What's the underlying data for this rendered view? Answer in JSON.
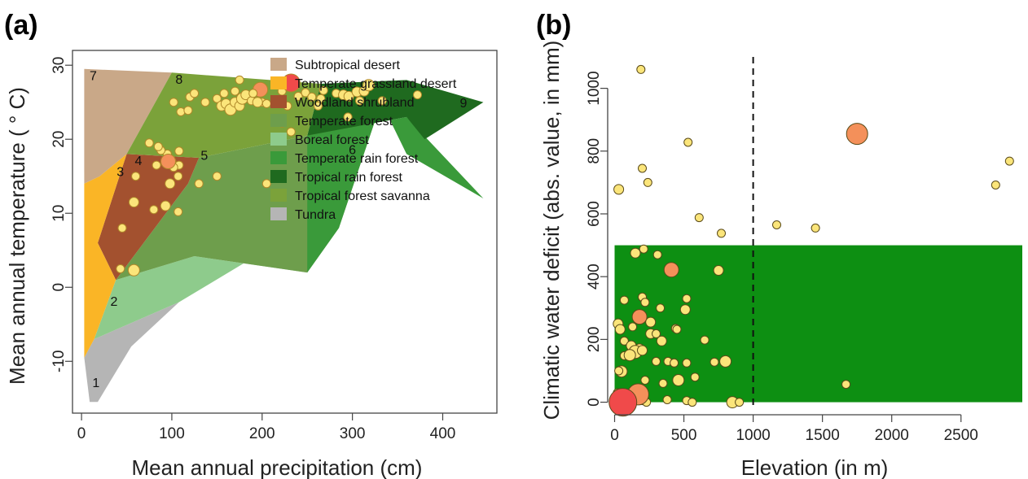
{
  "chart_data": [
    {
      "panel": "(a)",
      "type": "scatter",
      "xlabel": "Mean annual precipitation (cm)",
      "ylabel": "Mean annual temperature ( ° C)",
      "xlim": [
        -10,
        460
      ],
      "ylim": [
        32,
        -17
      ],
      "y_axis_inverted": true,
      "xticks": [
        0,
        100,
        200,
        300,
        400
      ],
      "yticks": [
        30,
        20,
        10,
        0,
        -10
      ],
      "legend": {
        "placement": "top-right",
        "entries": [
          {
            "label": "Subtropical desert",
            "color": "#c9a888"
          },
          {
            "label": "Temperate grassland desert",
            "color": "#fab526"
          },
          {
            "label": "Woodland shrubland",
            "color": "#a3512f"
          },
          {
            "label": "Temperate forest",
            "color": "#6e9e4c"
          },
          {
            "label": "Boreal forest",
            "color": "#8ecb8c"
          },
          {
            "label": "Temperate rain forest",
            "color": "#3a9a3a"
          },
          {
            "label": "Tropical rain forest",
            "color": "#1f6a1f"
          },
          {
            "label": "Tropical forest savanna",
            "color": "#7ba23a"
          },
          {
            "label": "Tundra",
            "color": "#b5b5b5"
          }
        ]
      },
      "biome_regions": [
        {
          "biome": "Tundra",
          "color": "#b5b5b5",
          "polygon": [
            [
              3,
              -9.5
            ],
            [
              9,
              -15.5
            ],
            [
              18,
              -15.5
            ],
            [
              55,
              -8
            ],
            [
              108,
              -2
            ],
            [
              14,
              -7
            ]
          ]
        },
        {
          "biome": "Boreal forest",
          "color": "#8ecb8c",
          "polygon": [
            [
              14,
              -7
            ],
            [
              108,
              -2
            ],
            [
              190,
              4
            ],
            [
              250,
              2
            ],
            [
              125,
              4.2
            ],
            [
              38,
              1
            ]
          ]
        },
        {
          "biome": "Temperate forest",
          "color": "#6e9e4c",
          "polygon": [
            [
              38,
              1
            ],
            [
              125,
              4.2
            ],
            [
              250,
              2
            ],
            [
              285,
              8
            ],
            [
              332,
              25
            ],
            [
              250,
              20.5
            ],
            [
              130,
              17.5
            ],
            [
              118,
              14
            ]
          ]
        },
        {
          "biome": "Temperate rain forest",
          "color": "#3a9a3a",
          "polygon": [
            [
              250,
              2
            ],
            [
              285,
              8
            ],
            [
              332,
              25
            ],
            [
              360,
              18
            ],
            [
              445,
              12
            ],
            [
              360,
              23
            ],
            [
              250,
              20.5
            ]
          ]
        },
        {
          "biome": "Tropical rain forest",
          "color": "#1f6a1f",
          "polygon": [
            [
              250,
              20.5
            ],
            [
              360,
              23
            ],
            [
              380,
              20
            ],
            [
              445,
              25
            ],
            [
              360,
              28
            ],
            [
              265,
              27.5
            ]
          ]
        },
        {
          "biome": "Woodland shrubland",
          "color": "#a3512f",
          "polygon": [
            [
              38,
              1
            ],
            [
              118,
              14
            ],
            [
              130,
              17.5
            ],
            [
              50,
              18
            ],
            [
              18,
              6
            ]
          ]
        },
        {
          "biome": "Temperate grassland desert",
          "color": "#fab526",
          "polygon": [
            [
              3,
              -9.5
            ],
            [
              14,
              -7
            ],
            [
              38,
              1
            ],
            [
              18,
              6
            ],
            [
              50,
              18
            ],
            [
              20,
              15
            ],
            [
              3,
              14
            ]
          ]
        },
        {
          "biome": "Subtropical desert",
          "color": "#c9a888",
          "polygon": [
            [
              3,
              14
            ],
            [
              20,
              15
            ],
            [
              50,
              18
            ],
            [
              100,
              29
            ],
            [
              3,
              29.5
            ]
          ]
        },
        {
          "biome": "Tropical forest savanna",
          "color": "#7ba23a",
          "polygon": [
            [
              50,
              18
            ],
            [
              130,
              17.5
            ],
            [
              250,
              20.5
            ],
            [
              265,
              27.5
            ],
            [
              100,
              29
            ]
          ]
        }
      ],
      "region_labels": [
        {
          "text": "1",
          "x": 16,
          "y": -13.5
        },
        {
          "text": "2",
          "x": 36,
          "y": -2.5
        },
        {
          "text": "3",
          "x": 43,
          "y": 15
        },
        {
          "text": "4",
          "x": 63,
          "y": 16.5
        },
        {
          "text": "5",
          "x": 136,
          "y": 17.2
        },
        {
          "text": "6",
          "x": 300,
          "y": 18
        },
        {
          "text": "7",
          "x": 13,
          "y": 28
        },
        {
          "text": "8",
          "x": 108,
          "y": 27.5
        },
        {
          "text": "9",
          "x": 423,
          "y": 24.3
        }
      ],
      "points": [
        {
          "x": 43,
          "y": 2.5,
          "r": 5
        },
        {
          "x": 58,
          "y": 2.3,
          "r": 7
        },
        {
          "x": 45,
          "y": 8,
          "r": 5
        },
        {
          "x": 58,
          "y": 11.5,
          "r": 6
        },
        {
          "x": 60,
          "y": 15,
          "r": 5
        },
        {
          "x": 80,
          "y": 10.5,
          "r": 5
        },
        {
          "x": 93,
          "y": 11,
          "r": 6
        },
        {
          "x": 107,
          "y": 10.2,
          "r": 5
        },
        {
          "x": 130,
          "y": 14,
          "r": 5
        },
        {
          "x": 150,
          "y": 15,
          "r": 5
        },
        {
          "x": 98,
          "y": 14,
          "r": 6
        },
        {
          "x": 107,
          "y": 15,
          "r": 5
        },
        {
          "x": 108,
          "y": 16.5,
          "r": 5
        },
        {
          "x": 100,
          "y": 17,
          "r": 5
        },
        {
          "x": 95,
          "y": 18,
          "r": 5
        },
        {
          "x": 88,
          "y": 18.5,
          "r": 5
        },
        {
          "x": 75,
          "y": 19.5,
          "r": 5
        },
        {
          "x": 85,
          "y": 19,
          "r": 5
        },
        {
          "x": 108,
          "y": 18.4,
          "r": 5
        },
        {
          "x": 102,
          "y": 16.2,
          "r": 5
        },
        {
          "x": 83,
          "y": 16.5,
          "r": 5
        },
        {
          "x": 96,
          "y": 17,
          "r": 9,
          "color": "#f4905a"
        },
        {
          "x": 205,
          "y": 14,
          "r": 5
        },
        {
          "x": 200,
          "y": 25,
          "r": 5
        },
        {
          "x": 295,
          "y": 23,
          "r": 5
        },
        {
          "x": 175,
          "y": 28,
          "r": 5
        },
        {
          "x": 222,
          "y": 22.2,
          "r": 5
        },
        {
          "x": 232,
          "y": 21,
          "r": 5
        },
        {
          "x": 228,
          "y": 24.5,
          "r": 5
        },
        {
          "x": 110,
          "y": 23.7,
          "r": 5
        },
        {
          "x": 118,
          "y": 23.9,
          "r": 5
        },
        {
          "x": 102,
          "y": 25,
          "r": 5
        },
        {
          "x": 120,
          "y": 25.7,
          "r": 5
        },
        {
          "x": 125,
          "y": 26.2,
          "r": 5
        },
        {
          "x": 137,
          "y": 25,
          "r": 5
        },
        {
          "x": 150,
          "y": 25.5,
          "r": 5
        },
        {
          "x": 155,
          "y": 24.5,
          "r": 6
        },
        {
          "x": 160,
          "y": 24.8,
          "r": 6
        },
        {
          "x": 165,
          "y": 24,
          "r": 7
        },
        {
          "x": 170,
          "y": 25,
          "r": 6
        },
        {
          "x": 175,
          "y": 24.5,
          "r": 6
        },
        {
          "x": 178,
          "y": 25.5,
          "r": 7
        },
        {
          "x": 182,
          "y": 26,
          "r": 6
        },
        {
          "x": 188,
          "y": 25.2,
          "r": 5
        },
        {
          "x": 195,
          "y": 25,
          "r": 6
        },
        {
          "x": 205,
          "y": 24.8,
          "r": 5
        },
        {
          "x": 198,
          "y": 26.7,
          "r": 9,
          "color": "#f4905a"
        },
        {
          "x": 158,
          "y": 26.2,
          "r": 5
        },
        {
          "x": 170,
          "y": 26.5,
          "r": 5
        },
        {
          "x": 190,
          "y": 26.2,
          "r": 5
        },
        {
          "x": 222,
          "y": 26.5,
          "r": 5
        },
        {
          "x": 240,
          "y": 25.8,
          "r": 5
        },
        {
          "x": 248,
          "y": 26.3,
          "r": 5
        },
        {
          "x": 255,
          "y": 25.7,
          "r": 5
        },
        {
          "x": 262,
          "y": 24.5,
          "r": 5
        },
        {
          "x": 265,
          "y": 25.5,
          "r": 5
        },
        {
          "x": 268,
          "y": 26.6,
          "r": 5
        },
        {
          "x": 282,
          "y": 26.2,
          "r": 5
        },
        {
          "x": 290,
          "y": 26,
          "r": 6
        },
        {
          "x": 296,
          "y": 25.8,
          "r": 6
        },
        {
          "x": 305,
          "y": 26.4,
          "r": 6
        },
        {
          "x": 308,
          "y": 25.2,
          "r": 5
        },
        {
          "x": 313,
          "y": 26.5,
          "r": 6
        },
        {
          "x": 318,
          "y": 27.3,
          "r": 7
        },
        {
          "x": 333,
          "y": 25.2,
          "r": 5
        },
        {
          "x": 372,
          "y": 26,
          "r": 5
        },
        {
          "x": 232,
          "y": 27.6,
          "r": 11,
          "color": "#f04a4a"
        }
      ]
    },
    {
      "panel": "(b)",
      "type": "scatter",
      "xlabel": "Elevation (in m)",
      "ylabel": "Climatic water deficit (abs. value, in mm)",
      "xlim": [
        -50,
        2960
      ],
      "ylim": [
        -40,
        1100
      ],
      "xticks": [
        0,
        500,
        1000,
        1500,
        2000,
        2500
      ],
      "yticks": [
        0,
        200,
        400,
        600,
        800,
        1000
      ],
      "shaded_region": {
        "x": [
          0,
          2960
        ],
        "y": [
          0,
          500
        ],
        "color": "#0d8f12"
      },
      "vline": {
        "x": 1000,
        "style": "dashed"
      },
      "points": [
        {
          "x": 190,
          "y": 1060,
          "r": 5
        },
        {
          "x": 530,
          "y": 828,
          "r": 5
        },
        {
          "x": 1750,
          "y": 855,
          "r": 13,
          "color": "#f4905a"
        },
        {
          "x": 200,
          "y": 745,
          "r": 5
        },
        {
          "x": 2850,
          "y": 768,
          "r": 5
        },
        {
          "x": 240,
          "y": 700,
          "r": 5
        },
        {
          "x": 30,
          "y": 678,
          "r": 6
        },
        {
          "x": 2750,
          "y": 692,
          "r": 5
        },
        {
          "x": 610,
          "y": 588,
          "r": 5
        },
        {
          "x": 1170,
          "y": 565,
          "r": 5
        },
        {
          "x": 1450,
          "y": 555,
          "r": 5
        },
        {
          "x": 770,
          "y": 538,
          "r": 5
        },
        {
          "x": 210,
          "y": 488,
          "r": 5
        },
        {
          "x": 150,
          "y": 475,
          "r": 6
        },
        {
          "x": 310,
          "y": 470,
          "r": 5
        },
        {
          "x": 410,
          "y": 422,
          "r": 9,
          "color": "#f4905a"
        },
        {
          "x": 750,
          "y": 420,
          "r": 6
        },
        {
          "x": 200,
          "y": 335,
          "r": 5
        },
        {
          "x": 220,
          "y": 318,
          "r": 5
        },
        {
          "x": 520,
          "y": 330,
          "r": 5
        },
        {
          "x": 70,
          "y": 325,
          "r": 5
        },
        {
          "x": 510,
          "y": 295,
          "r": 6
        },
        {
          "x": 330,
          "y": 300,
          "r": 5
        },
        {
          "x": 180,
          "y": 272,
          "r": 9,
          "color": "#f4905a"
        },
        {
          "x": 260,
          "y": 255,
          "r": 6
        },
        {
          "x": 25,
          "y": 250,
          "r": 6
        },
        {
          "x": 40,
          "y": 232,
          "r": 6
        },
        {
          "x": 130,
          "y": 240,
          "r": 5
        },
        {
          "x": 440,
          "y": 235,
          "r": 5
        },
        {
          "x": 450,
          "y": 232,
          "r": 5
        },
        {
          "x": 260,
          "y": 218,
          "r": 6
        },
        {
          "x": 300,
          "y": 218,
          "r": 5
        },
        {
          "x": 340,
          "y": 195,
          "r": 6
        },
        {
          "x": 650,
          "y": 198,
          "r": 5
        },
        {
          "x": 70,
          "y": 195,
          "r": 5
        },
        {
          "x": 120,
          "y": 180,
          "r": 6
        },
        {
          "x": 180,
          "y": 170,
          "r": 6
        },
        {
          "x": 150,
          "y": 160,
          "r": 8
        },
        {
          "x": 200,
          "y": 165,
          "r": 6
        },
        {
          "x": 70,
          "y": 148,
          "r": 5
        },
        {
          "x": 110,
          "y": 150,
          "r": 7
        },
        {
          "x": 300,
          "y": 130,
          "r": 5
        },
        {
          "x": 385,
          "y": 130,
          "r": 5
        },
        {
          "x": 430,
          "y": 125,
          "r": 5
        },
        {
          "x": 520,
          "y": 125,
          "r": 5
        },
        {
          "x": 720,
          "y": 128,
          "r": 5
        },
        {
          "x": 800,
          "y": 130,
          "r": 7
        },
        {
          "x": 50,
          "y": 98,
          "r": 7
        },
        {
          "x": 30,
          "y": 100,
          "r": 5
        },
        {
          "x": 460,
          "y": 70,
          "r": 7
        },
        {
          "x": 220,
          "y": 70,
          "r": 5
        },
        {
          "x": 580,
          "y": 80,
          "r": 5
        },
        {
          "x": 1670,
          "y": 57,
          "r": 5
        },
        {
          "x": 350,
          "y": 60,
          "r": 5
        },
        {
          "x": 20,
          "y": 30,
          "r": 5
        },
        {
          "x": 60,
          "y": 22,
          "r": 6
        },
        {
          "x": 100,
          "y": 15,
          "r": 5
        },
        {
          "x": 130,
          "y": 20,
          "r": 5
        },
        {
          "x": 200,
          "y": 5,
          "r": 5
        },
        {
          "x": 230,
          "y": 0,
          "r": 5
        },
        {
          "x": 380,
          "y": 8,
          "r": 5
        },
        {
          "x": 520,
          "y": 5,
          "r": 5
        },
        {
          "x": 560,
          "y": 0,
          "r": 5
        },
        {
          "x": 850,
          "y": 0,
          "r": 7
        },
        {
          "x": 900,
          "y": 0,
          "r": 5
        },
        {
          "x": 120,
          "y": 0,
          "r": 5
        },
        {
          "x": 70,
          "y": 0,
          "r": 6
        },
        {
          "x": 170,
          "y": 25,
          "r": 13,
          "color": "#f4905a"
        },
        {
          "x": 60,
          "y": 0,
          "r": 17,
          "color": "#f04a4a"
        }
      ]
    }
  ]
}
